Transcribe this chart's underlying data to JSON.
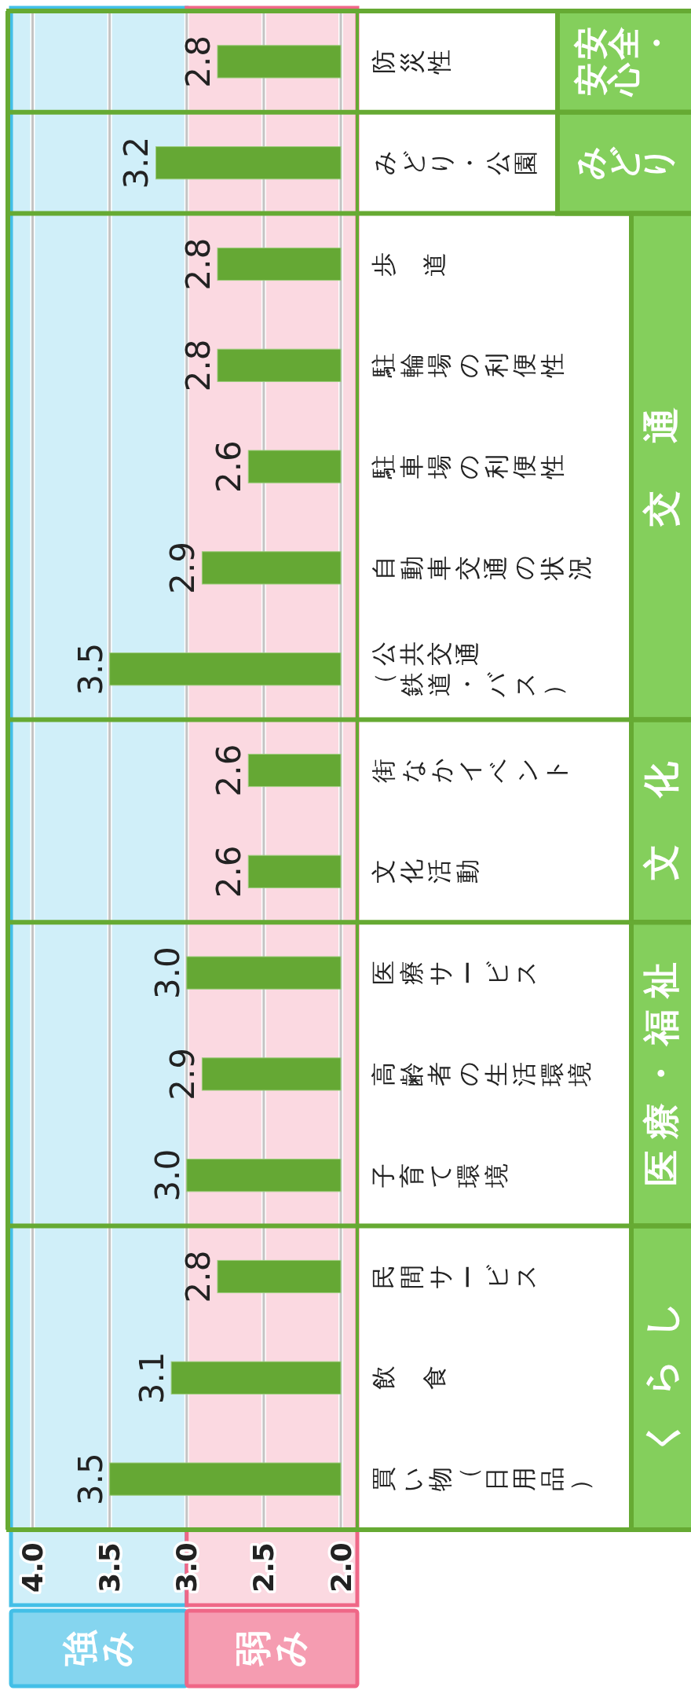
{
  "chart_data": {
    "type": "bar",
    "orientation": "horizontal",
    "categories": [
      "防災性",
      "みどり・公園",
      "歩道",
      "駐輪場の利便性",
      "駐車場の利便性",
      "自動車交通の状況",
      "公共交通（鉄道・バス）",
      "街なかイベント",
      "文化活動",
      "医療サービス",
      "高齢者の生活環境",
      "子育て環境",
      "民間サービス",
      "飲食",
      "買い物（日用品）"
    ],
    "values": [
      2.8,
      3.2,
      2.8,
      2.8,
      2.6,
      2.9,
      3.5,
      2.6,
      2.6,
      3.0,
      2.9,
      3.0,
      2.8,
      3.1,
      3.5
    ],
    "value_labels": [
      "2.8",
      "3.2",
      "2.8",
      "2.8",
      "2.6",
      "2.9",
      "3.5",
      "2.6",
      "2.6",
      "3.0",
      "2.9",
      "3.0",
      "2.8",
      "3.1",
      "3.5"
    ],
    "color": "#65a834",
    "xlim": [
      4.14,
      2.0
    ],
    "xticks": [
      {
        "value": 4,
        "label": "4.0"
      },
      {
        "value": 3.5,
        "label": "3.5"
      },
      {
        "value": 3,
        "label": "3.0"
      },
      {
        "value": 2.5,
        "label": "2.5"
      },
      {
        "value": 2,
        "label": "2.0"
      }
    ],
    "grid": "x",
    "legend": "bottom",
    "bands": [
      {
        "axis": "x",
        "from": 3,
        "to": 4.14,
        "label": "強み",
        "color": "#d0eff9"
      },
      {
        "axis": "x",
        "from": 2.0,
        "to": 3,
        "label": "弱み",
        "color": "#fbd9e1"
      }
    ],
    "annotations": [
      "安全・安心",
      "みどり",
      "交通",
      "文化",
      "医療・福祉",
      "くらし"
    ]
  }
}
